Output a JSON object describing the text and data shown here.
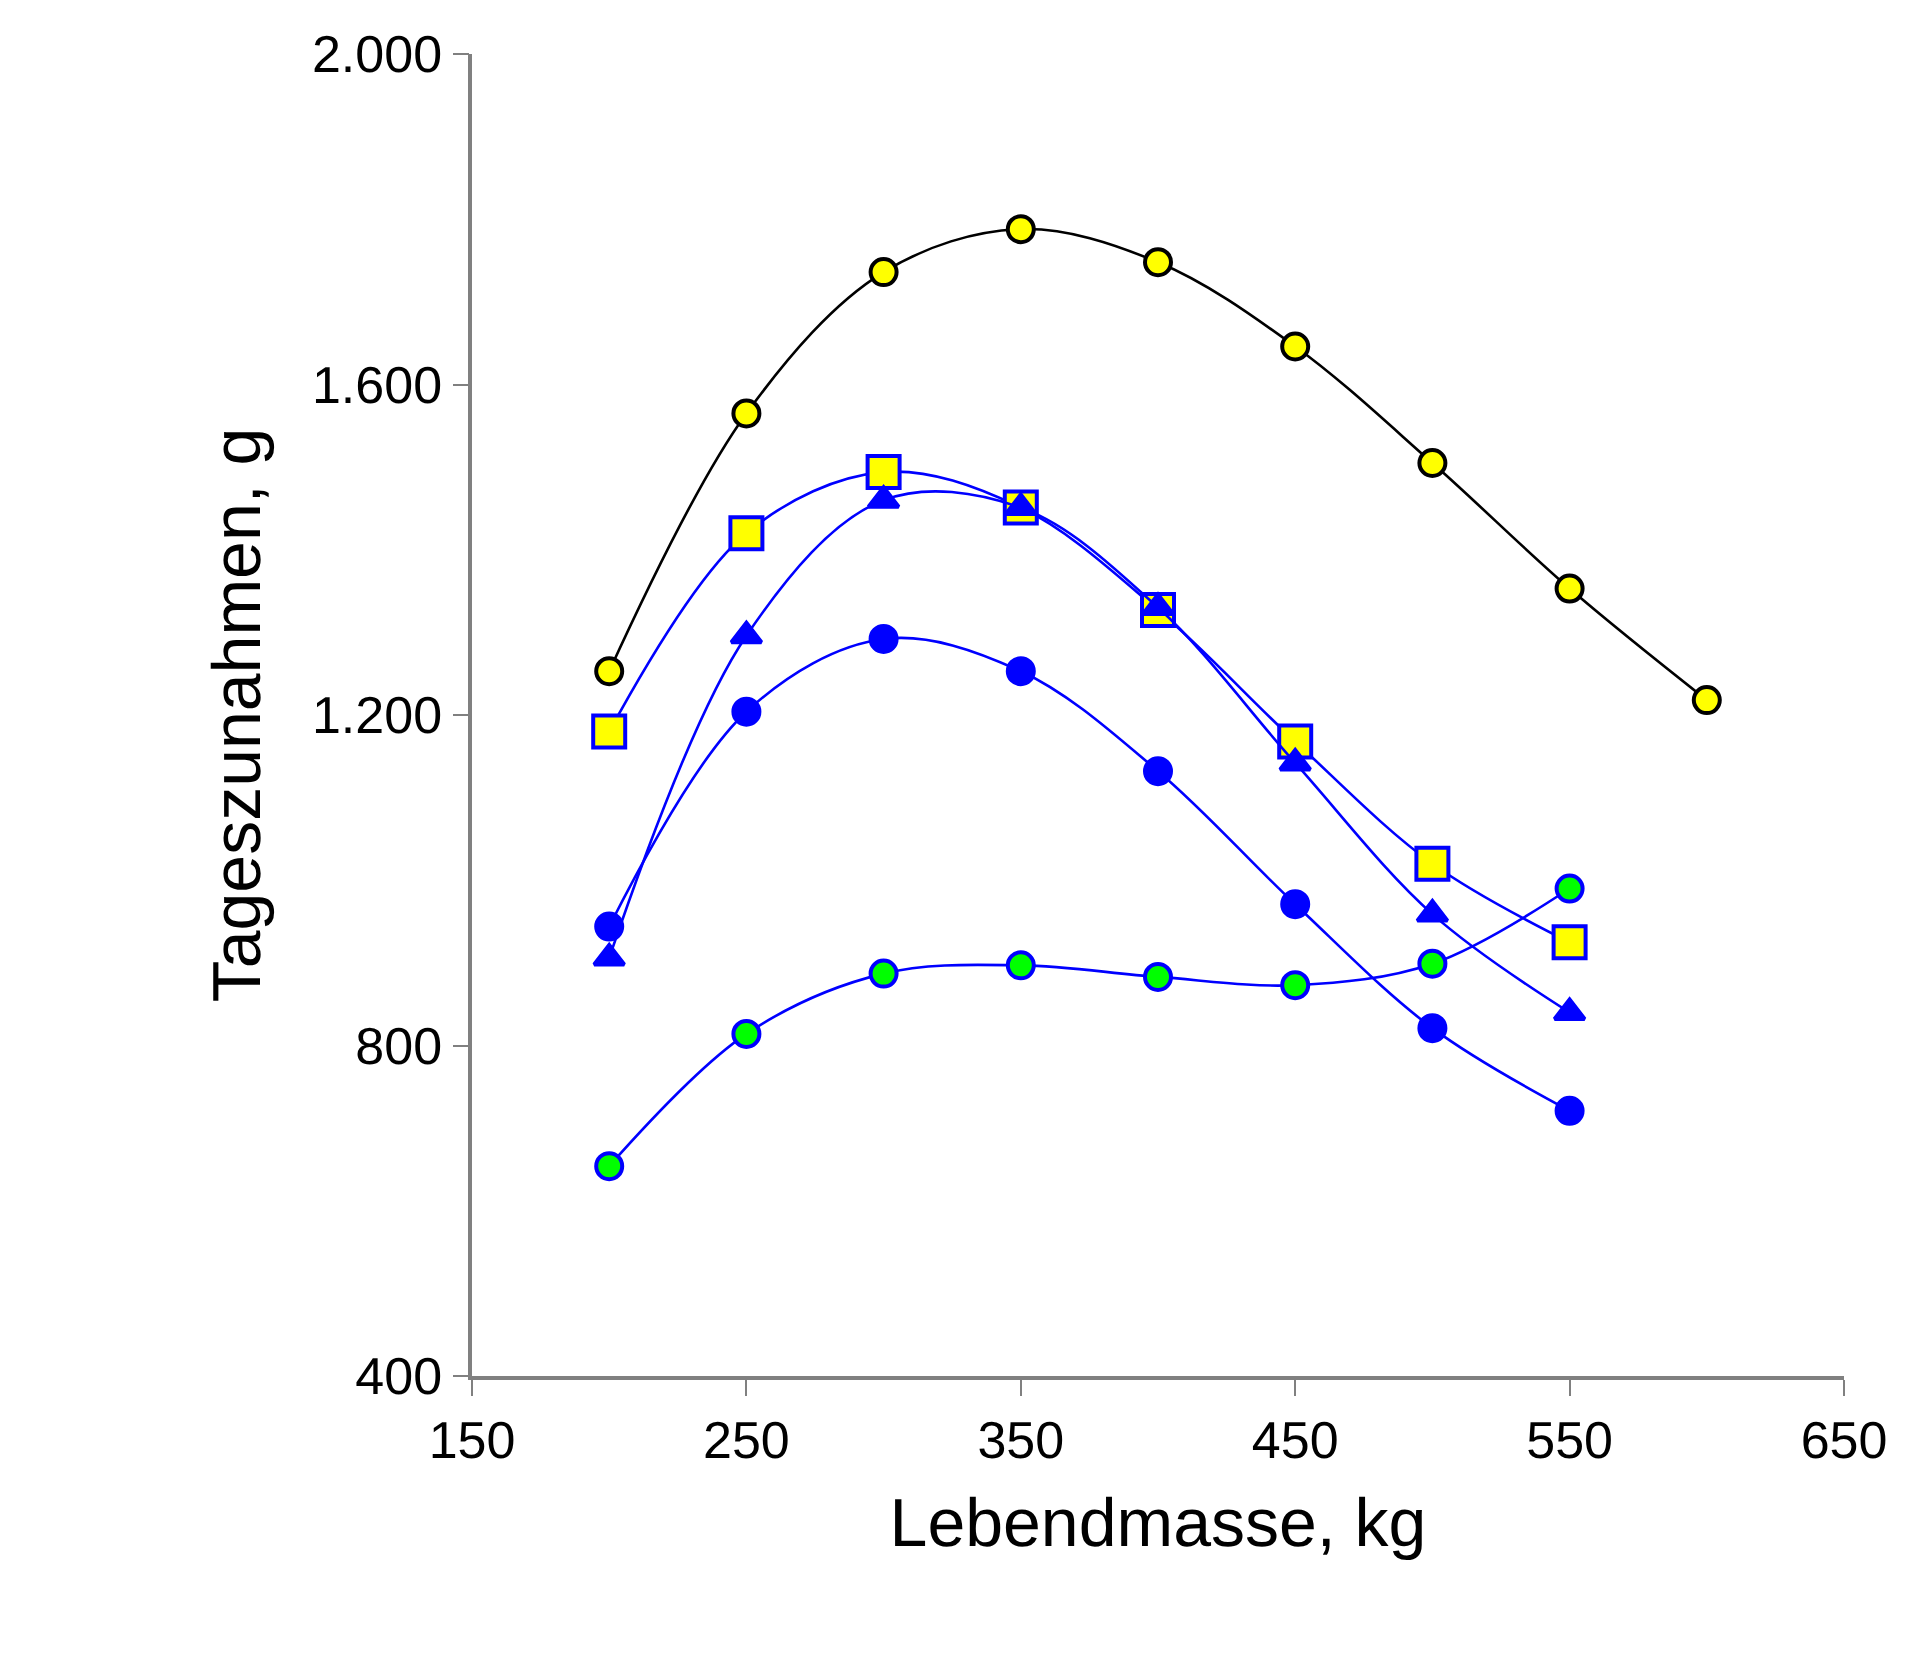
{
  "chart_data": {
    "type": "line",
    "xlabel": "Lebendmasse, kg",
    "ylabel": "Tageszunahmen, g",
    "xlim": [
      150,
      650
    ],
    "xticks": [
      150,
      250,
      350,
      450,
      550,
      650
    ],
    "ylim": [
      400,
      2000
    ],
    "yticks": [
      {
        "value": 400,
        "label": "400"
      },
      {
        "value": 800,
        "label": "800"
      },
      {
        "value": 1200,
        "label": "1.200"
      },
      {
        "value": 1600,
        "label": "1.600"
      },
      {
        "value": 2000,
        "label": "2.000"
      }
    ],
    "series": [
      {
        "x": [
          200,
          250,
          300,
          350,
          400,
          450,
          500,
          550,
          600
        ],
        "values": [
          1253,
          1565,
          1736,
          1788,
          1748,
          1646,
          1505,
          1353,
          1218
        ],
        "color": "#000000",
        "colors": [
          "#ffff00",
          "#ffff00",
          "#ffff00",
          "#ffff00",
          "#ffff00",
          "#ffff00",
          "#ffff00",
          "#ffff00",
          "#ffff00"
        ],
        "marker": "circle"
      },
      {
        "x": [
          200,
          250,
          300,
          350,
          400,
          450,
          500,
          550
        ],
        "values": [
          1180,
          1420,
          1494,
          1451,
          1327,
          1168,
          1020,
          925
        ],
        "color": "#0000ff",
        "colors": [
          "#ffff00",
          "#ffff00",
          "#ffff00",
          "#ffff00",
          "#ffff00",
          "#ffff00",
          "#ffff00",
          "#ffff00"
        ],
        "marker": "square"
      },
      {
        "x": [
          200,
          250,
          300,
          350,
          400,
          450,
          500,
          550
        ],
        "values": [
          906,
          1296,
          1460,
          1451,
          1330,
          1142,
          959,
          840
        ],
        "color": "#0000ff",
        "marker": "triangle"
      },
      {
        "x": [
          200,
          250,
          300,
          350,
          400,
          450,
          500,
          550
        ],
        "values": [
          944,
          1204,
          1292,
          1253,
          1132,
          971,
          821,
          721
        ],
        "color": "#0000ff",
        "marker": "circle"
      },
      {
        "x": [
          200,
          250,
          300,
          350,
          400,
          450,
          500,
          550
        ],
        "values": [
          654,
          814,
          887,
          897,
          883,
          873,
          899,
          990
        ],
        "color": "#0000ff",
        "colors": [
          "#00ff00",
          "#00ff00",
          "#00ff00",
          "#00ff00",
          "#00ff00",
          "#00ff00",
          "#00ff00",
          "#00ff00"
        ],
        "marker": "circle"
      }
    ]
  }
}
